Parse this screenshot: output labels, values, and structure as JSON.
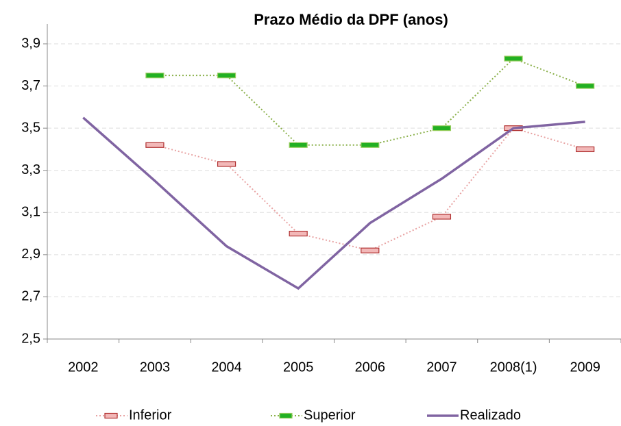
{
  "chart_data": {
    "type": "line",
    "title": "Prazo Médio da DPF (anos)",
    "categories": [
      "2002",
      "2003",
      "2004",
      "2005",
      "2006",
      "2007",
      "2008(1)",
      "2009"
    ],
    "series": [
      {
        "name": "Inferior",
        "color": "#e8a2a2",
        "marker_color": "#f2b8b8",
        "marker_edge": "#b03030",
        "dash": "dotted",
        "values": [
          null,
          3.42,
          3.33,
          3.0,
          2.92,
          3.08,
          3.5,
          3.4
        ]
      },
      {
        "name": "Superior",
        "color": "#8ab04a",
        "marker_color": "#22b022",
        "marker_edge": "#9acd60",
        "dash": "dotted",
        "values": [
          null,
          3.75,
          3.75,
          3.42,
          3.42,
          3.5,
          3.83,
          3.7
        ]
      },
      {
        "name": "Realizado",
        "color": "#8064a2",
        "dash": "solid",
        "values": [
          3.55,
          3.25,
          2.94,
          2.74,
          3.05,
          3.26,
          3.5,
          3.53
        ]
      }
    ],
    "ylim": [
      2.5,
      3.9
    ],
    "yticks": [
      {
        "value": 2.5,
        "label": "2,5"
      },
      {
        "value": 2.7,
        "label": "2,7"
      },
      {
        "value": 2.9,
        "label": "2,9"
      },
      {
        "value": 3.1,
        "label": "3,1"
      },
      {
        "value": 3.3,
        "label": "3,3"
      },
      {
        "value": 3.5,
        "label": "3,5"
      },
      {
        "value": 3.7,
        "label": "3,7"
      },
      {
        "value": 3.9,
        "label": "3,9"
      }
    ],
    "grid": true,
    "legend": "bottom"
  }
}
